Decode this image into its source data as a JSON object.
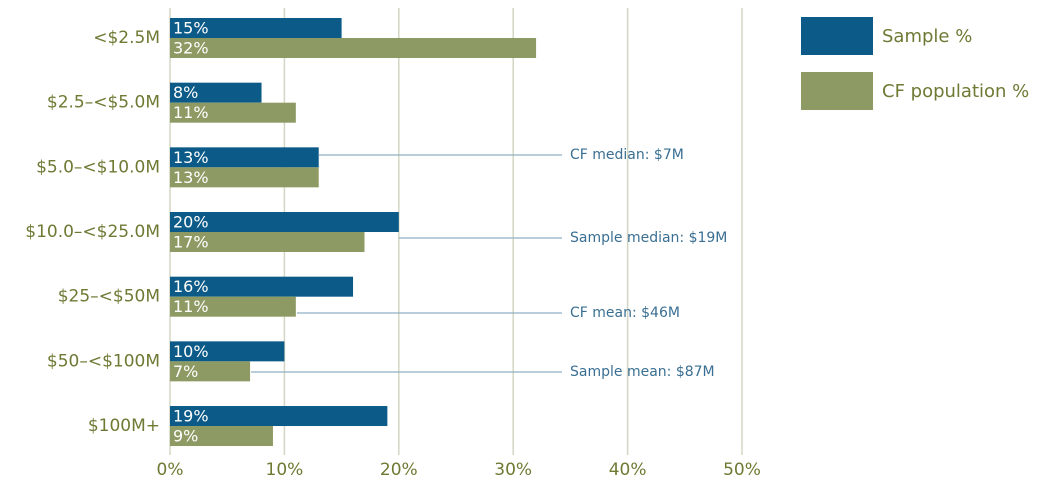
{
  "chart_data": {
    "type": "hbar",
    "categories": [
      "<$2.5M",
      "$2.5–<$5.0M",
      "$5.0–<$10.0M",
      "$10.0–<$25.0M",
      "$25–<$50M",
      "$50–<$100M",
      "$100M+"
    ],
    "series": [
      {
        "name": "Sample %",
        "color": "#0b5a87",
        "values": [
          15,
          8,
          13,
          20,
          16,
          10,
          19
        ],
        "value_labels": [
          "15%",
          "8%",
          "13%",
          "20%",
          "16%",
          "10%",
          "19%"
        ]
      },
      {
        "name": "CF population %",
        "color": "#8e9a63",
        "values": [
          32,
          11,
          13,
          17,
          11,
          7,
          9
        ],
        "value_labels": [
          "32%",
          "11%",
          "13%",
          "17%",
          "11%",
          "7%",
          "9%"
        ]
      }
    ],
    "xlim": [
      0,
      50
    ],
    "xticks": [
      {
        "value": 0,
        "label": "0%"
      },
      {
        "value": 10,
        "label": "10%"
      },
      {
        "value": 20,
        "label": "20%"
      },
      {
        "value": 30,
        "label": "30%"
      },
      {
        "value": 40,
        "label": "40%"
      },
      {
        "value": 50,
        "label": "50%"
      }
    ],
    "grid": true,
    "legend": "right",
    "annotations": [
      "CF median: $7M",
      "Sample median: $19M",
      "CF mean: $46M",
      "Sample mean: $87M"
    ]
  }
}
